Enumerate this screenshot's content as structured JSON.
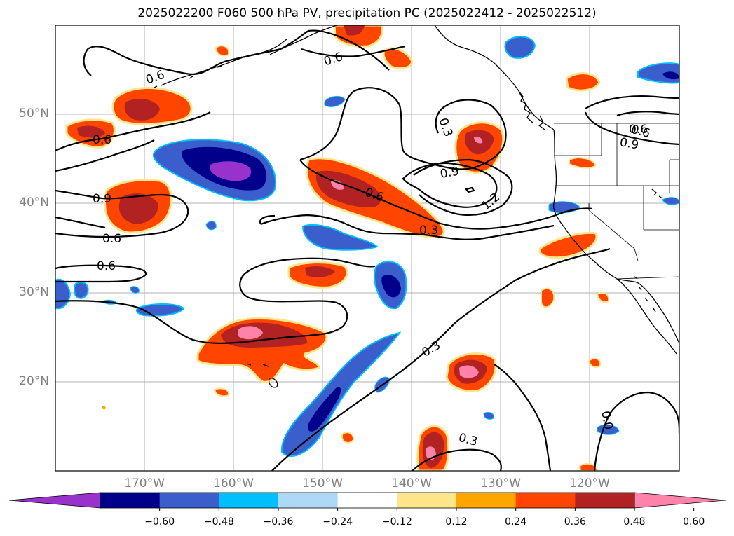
{
  "title": "2025022200 F060 500 hPa PV, precipitation PC (2025022412 - 2025022512)",
  "map": {
    "lat_labels": [
      "50°N",
      "40°N",
      "30°N",
      "20°N"
    ],
    "lon_labels": [
      "170°W",
      "160°W",
      "150°W",
      "140°W",
      "130°W",
      "120°W"
    ],
    "contour_labels": [
      "0.6",
      "0.6",
      "0.6",
      "0.9",
      "0.6",
      "0.6",
      "0.6",
      "0.3",
      "0.9",
      "1.2",
      "0.6",
      "0.3",
      "0.9",
      "0.6",
      "0.3",
      "0.3",
      "0.0"
    ],
    "colors": {
      "land_outline": "#000000",
      "grid": "#b0b0b0",
      "contour": "#000000"
    }
  },
  "colorbar": {
    "ticks": [
      "−0.60",
      "−0.48",
      "−0.36",
      "−0.24",
      "−0.12",
      "0.12",
      "0.24",
      "0.36",
      "0.48",
      "0.60"
    ],
    "colors": [
      "#9932cc",
      "#00008b",
      "#3a5fcd",
      "#00bfff",
      "#add8f6",
      "#ffffff",
      "#fde68a",
      "#ffa500",
      "#ff4500",
      "#b22222",
      "#ff82ab"
    ]
  }
}
